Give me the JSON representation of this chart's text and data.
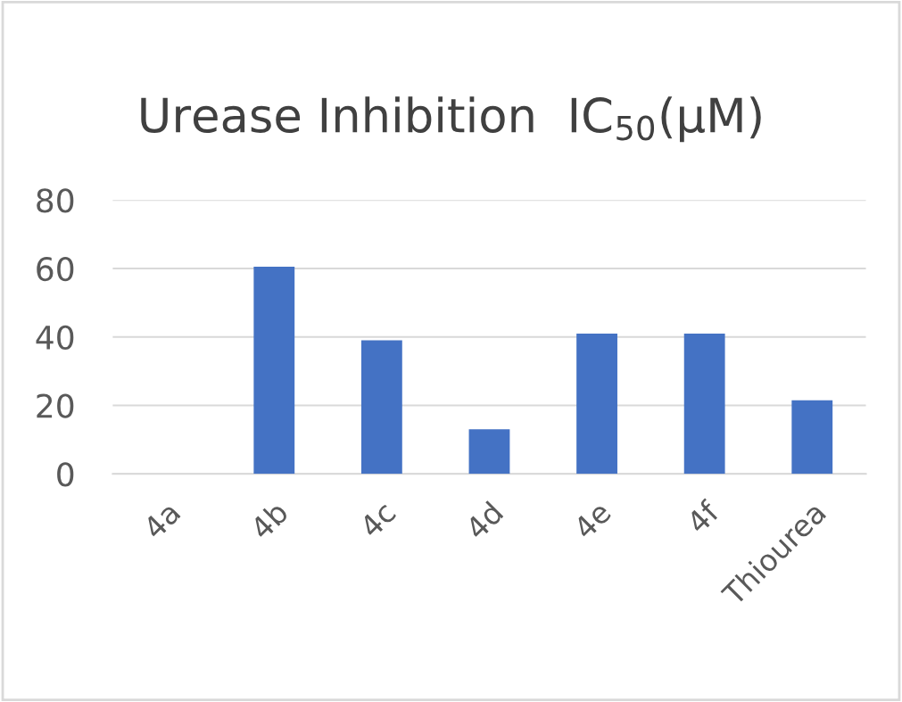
{
  "chart_data": {
    "type": "bar",
    "title": "Urease Inhibition  IC$_{50}$(μM)",
    "categories": [
      "4a",
      "4b",
      "4c",
      "4d",
      "4e",
      "4f",
      "Thiourea"
    ],
    "values": [
      0,
      60.5,
      39,
      13,
      41,
      41,
      21.5
    ],
    "color": "#4472c4",
    "ylim": [
      0,
      80
    ],
    "yticks": [
      0,
      20,
      40,
      60,
      80
    ],
    "grid": "y"
  }
}
